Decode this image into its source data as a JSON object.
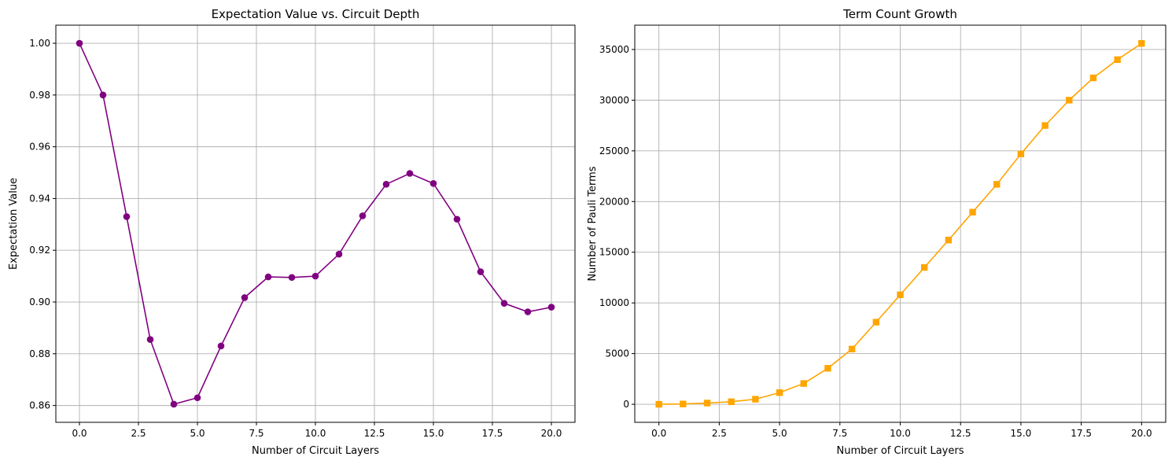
{
  "chart_data": [
    {
      "type": "line",
      "title": "Expectation Value vs. Circuit Depth",
      "xlabel": "Number of Circuit Layers",
      "ylabel": "Expectation Value",
      "xlim": [
        -1,
        21
      ],
      "ylim": [
        0.8535,
        1.007
      ],
      "xticks": [
        0,
        2.5,
        5,
        7.5,
        10,
        12.5,
        15,
        17.5,
        20
      ],
      "xtick_labels": [
        "0.0",
        "2.5",
        "5.0",
        "7.5",
        "10.0",
        "12.5",
        "15.0",
        "17.5",
        "20.0"
      ],
      "yticks": [
        0.86,
        0.88,
        0.9,
        0.92,
        0.94,
        0.96,
        0.98,
        1.0
      ],
      "ytick_labels": [
        "0.86",
        "0.88",
        "0.90",
        "0.92",
        "0.94",
        "0.96",
        "0.98",
        "1.00"
      ],
      "grid": true,
      "series": [
        {
          "color": "#800080",
          "marker": "circle",
          "x": [
            0,
            1,
            2,
            3,
            4,
            5,
            6,
            7,
            8,
            9,
            10,
            11,
            12,
            13,
            14,
            15,
            16,
            17,
            18,
            19,
            20
          ],
          "y": [
            1.0,
            0.98,
            0.933,
            0.8855,
            0.8605,
            0.863,
            0.883,
            0.9017,
            0.9097,
            0.9095,
            0.91,
            0.9185,
            0.9333,
            0.9455,
            0.9497,
            0.9458,
            0.932,
            0.9117,
            0.8995,
            0.8962,
            0.898
          ]
        }
      ]
    },
    {
      "type": "line",
      "title": "Term Count Growth",
      "xlabel": "Number of Circuit Layers",
      "ylabel": "Number of Pauli Terms",
      "xlim": [
        -1,
        21
      ],
      "ylim": [
        -1780,
        37400
      ],
      "xticks": [
        0,
        2.5,
        5,
        7.5,
        10,
        12.5,
        15,
        17.5,
        20
      ],
      "xtick_labels": [
        "0.0",
        "2.5",
        "5.0",
        "7.5",
        "10.0",
        "12.5",
        "15.0",
        "17.5",
        "20.0"
      ],
      "yticks": [
        0,
        5000,
        10000,
        15000,
        20000,
        25000,
        30000,
        35000
      ],
      "ytick_labels": [
        "0",
        "5000",
        "10000",
        "15000",
        "20000",
        "25000",
        "30000",
        "35000"
      ],
      "grid": true,
      "series": [
        {
          "color": "#FFA500",
          "marker": "square",
          "x": [
            0,
            1,
            2,
            3,
            4,
            5,
            6,
            7,
            8,
            9,
            10,
            11,
            12,
            13,
            14,
            15,
            16,
            17,
            18,
            19,
            20
          ],
          "y": [
            0,
            30,
            120,
            250,
            500,
            1150,
            2050,
            3550,
            5450,
            8100,
            10800,
            13500,
            16200,
            18950,
            21700,
            24700,
            27500,
            30000,
            32200,
            34000,
            35600
          ]
        }
      ]
    }
  ]
}
